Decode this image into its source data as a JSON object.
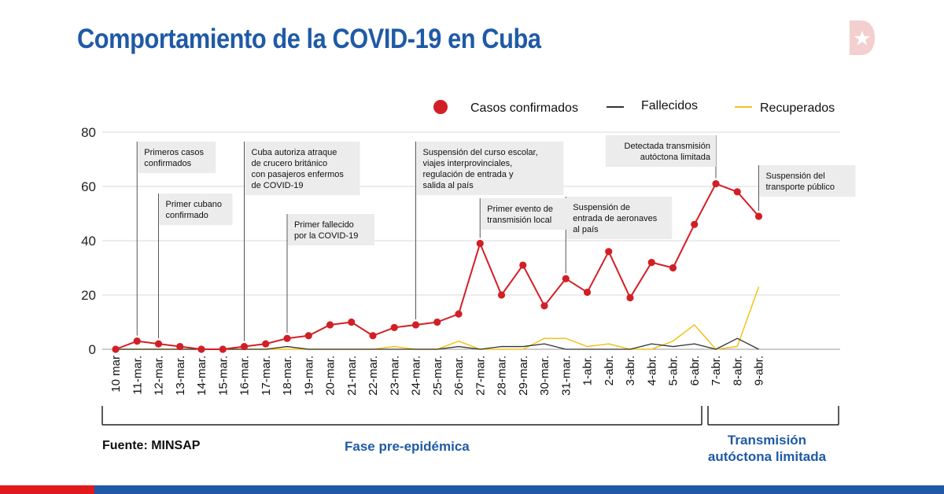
{
  "title": "Comportamiento de la COVID-19 en Cuba",
  "source": "Fuente: MINSAP",
  "phases": {
    "pre": "Fase pre-epidémica",
    "local_line1": "Transmisión",
    "local_line2": "autóctona limitada"
  },
  "colors": {
    "title": "#1f5aa6",
    "confirmed": "#d21f26",
    "deaths": "#333333",
    "recovered": "#f2c21b",
    "grid": "#d9d9d9",
    "annotation_bg": "#ececec",
    "bar_red": "#e0191c",
    "bar_blue": "#1f5aa6"
  },
  "chart_data": {
    "type": "line",
    "categories": [
      "10 mar",
      "11-mar.",
      "12-mar.",
      "13-mar.",
      "14-mar.",
      "15-mar.",
      "16-mar.",
      "17-mar.",
      "18-mar.",
      "19-mar.",
      "20-mar.",
      "21-mar.",
      "22-mar.",
      "23-mar.",
      "24-mar.",
      "25-mar.",
      "26-mar.",
      "27-mar.",
      "28-mar.",
      "29-mar.",
      "30-mar.",
      "31-mar.",
      "1-abr.",
      "2-abr.",
      "3-abr.",
      "4-abr.",
      "5-abr.",
      "6-abr.",
      "7-abr.",
      "8-abr.",
      "9-abr."
    ],
    "ylim": [
      0,
      80
    ],
    "yticks": [
      "0",
      "20",
      "40",
      "60",
      "80"
    ],
    "grid": true,
    "legend_position": "top-right",
    "series": [
      {
        "name": "Casos confirmados",
        "style": "line-markers",
        "values": [
          0,
          3,
          2,
          1,
          0,
          0,
          1,
          2,
          4,
          5,
          9,
          10,
          5,
          8,
          9,
          10,
          13,
          39,
          20,
          31,
          16,
          26,
          21,
          36,
          19,
          32,
          30,
          46,
          61,
          58,
          49
        ]
      },
      {
        "name": "Fallecidos",
        "style": "line",
        "values": [
          0,
          0,
          0,
          0,
          0,
          0,
          0,
          0,
          1,
          0,
          0,
          0,
          0,
          0,
          0,
          0,
          1,
          0,
          1,
          1,
          2,
          0,
          0,
          0,
          0,
          2,
          1,
          2,
          0,
          4,
          0
        ]
      },
      {
        "name": "Recuperados",
        "style": "line",
        "values": [
          0,
          0,
          0,
          0,
          0,
          0,
          0,
          0,
          0,
          0,
          0,
          0,
          0,
          1,
          0,
          0,
          3,
          0,
          0,
          0,
          4,
          4,
          1,
          2,
          0,
          0,
          3,
          9,
          0,
          1,
          23
        ]
      }
    ],
    "annotations": [
      {
        "index": 1,
        "lines": [
          "Primeros casos",
          "confirmados"
        ]
      },
      {
        "index": 2,
        "lines": [
          "Primer cubano",
          "confirmado"
        ]
      },
      {
        "index": 6,
        "lines": [
          "Cuba autoriza atraque",
          "de crucero británico",
          "con pasajeros enfermos",
          "de COVID-19"
        ]
      },
      {
        "index": 8,
        "lines": [
          "Primer fallecido",
          "por la COVID-19"
        ]
      },
      {
        "index": 14,
        "lines": [
          "Suspensión del curso escolar,",
          "viajes interprovinciales,",
          "regulación de entrada y",
          "salida al país"
        ]
      },
      {
        "index": 17,
        "lines": [
          "Primer evento de",
          "transmisión local"
        ]
      },
      {
        "index": 21,
        "lines": [
          "Suspensión de",
          "entrada de aeronaves",
          "al país"
        ]
      },
      {
        "index": 28,
        "lines": [
          "Detectada transmisión",
          "autóctona limitada"
        ]
      },
      {
        "index": 30,
        "lines": [
          "Suspensión del",
          "transporte público"
        ]
      }
    ]
  }
}
